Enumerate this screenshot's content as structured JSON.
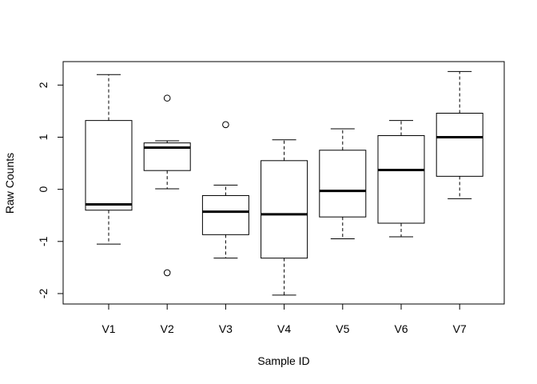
{
  "chart_data": {
    "type": "boxplot",
    "title": "",
    "xlabel": "Sample ID",
    "ylabel": "Raw Counts",
    "ylim": [
      -2.2,
      2.45
    ],
    "yticks": [
      -2,
      -1,
      0,
      1,
      2
    ],
    "ytick_labels": [
      "-2",
      "-1",
      "0",
      "1",
      "2"
    ],
    "grid": false,
    "legend": "none",
    "categories": [
      "V1",
      "V2",
      "V3",
      "V4",
      "V5",
      "V6",
      "V7"
    ],
    "boxes": [
      {
        "name": "V1",
        "whisker_low": -1.05,
        "q1": -0.4,
        "median": -0.29,
        "q3": 1.32,
        "whisker_high": 2.2,
        "outliers": []
      },
      {
        "name": "V2",
        "whisker_low": 0.01,
        "q1": 0.36,
        "median": 0.8,
        "q3": 0.89,
        "whisker_high": 0.93,
        "outliers": [
          1.75,
          -1.6
        ]
      },
      {
        "name": "V3",
        "whisker_low": -1.32,
        "q1": -0.87,
        "median": -0.43,
        "q3": -0.12,
        "whisker_high": 0.08,
        "outliers": [
          1.24
        ]
      },
      {
        "name": "V4",
        "whisker_low": -2.03,
        "q1": -1.32,
        "median": -0.48,
        "q3": 0.55,
        "whisker_high": 0.95,
        "outliers": []
      },
      {
        "name": "V5",
        "whisker_low": -0.95,
        "q1": -0.53,
        "median": -0.03,
        "q3": 0.75,
        "whisker_high": 1.16,
        "outliers": []
      },
      {
        "name": "V6",
        "whisker_low": -0.91,
        "q1": -0.65,
        "median": 0.37,
        "q3": 1.03,
        "whisker_high": 1.32,
        "outliers": []
      },
      {
        "name": "V7",
        "whisker_low": -0.18,
        "q1": 0.25,
        "median": 1.0,
        "q3": 1.46,
        "whisker_high": 2.26,
        "outliers": []
      }
    ]
  }
}
